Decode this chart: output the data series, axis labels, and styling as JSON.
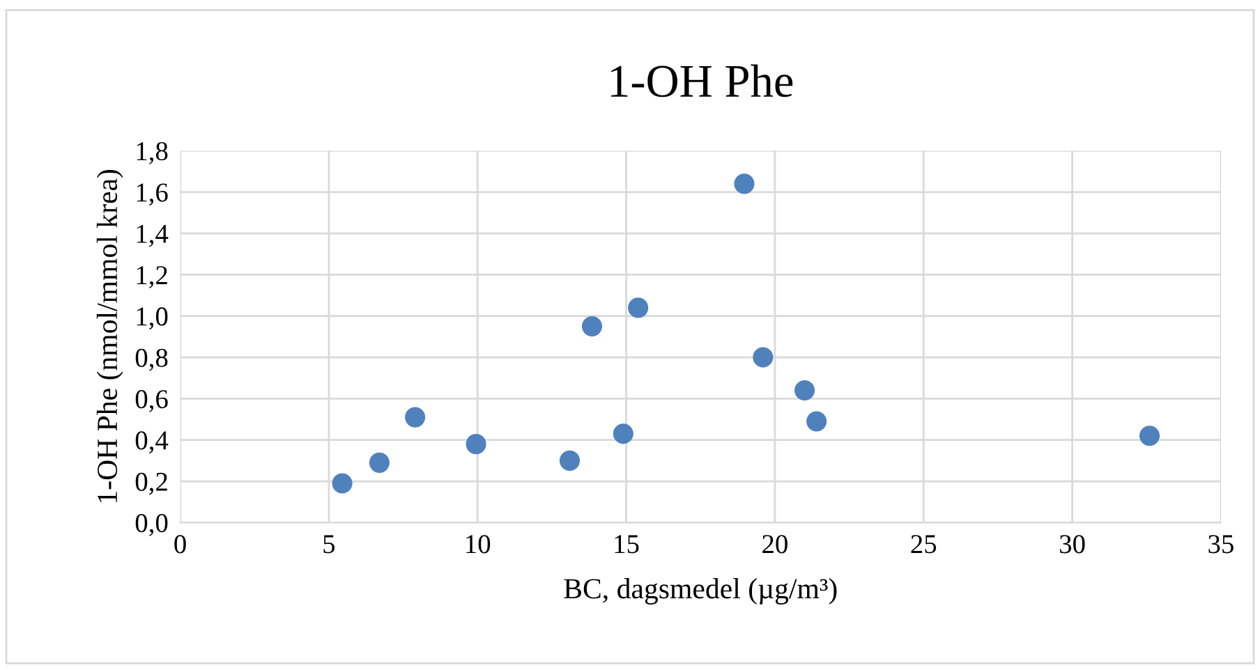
{
  "chart_data": {
    "type": "scatter",
    "title": "1-OH Phe",
    "xlabel": "BC, dagsmedel (µg/m³)",
    "ylabel": "1-OH Phe (nmol/mmol krea)",
    "x": [
      5.45,
      6.7,
      7.9,
      9.95,
      13.1,
      13.85,
      14.9,
      15.4,
      18.97,
      19.6,
      21.0,
      21.4,
      32.6
    ],
    "series": [
      {
        "color": "#4f81bd",
        "values": [
          0.19,
          0.29,
          0.51,
          0.38,
          0.3,
          0.95,
          0.43,
          1.04,
          1.64,
          0.8,
          0.64,
          0.49,
          0.42
        ]
      }
    ],
    "xlim": [
      0,
      35
    ],
    "xticks": [
      0,
      5,
      10,
      15,
      20,
      25,
      30,
      35
    ],
    "ylim": [
      0,
      1.8
    ],
    "yticks": [
      {
        "value": 0,
        "label": "0,0"
      },
      {
        "value": 0.2,
        "label": "0,2"
      },
      {
        "value": 0.4,
        "label": "0,4"
      },
      {
        "value": 0.6,
        "label": "0,6"
      },
      {
        "value": 0.8,
        "label": "0,8"
      },
      {
        "value": 1.0,
        "label": "1,0"
      },
      {
        "value": 1.2,
        "label": "1,2"
      },
      {
        "value": 1.4,
        "label": "1,4"
      },
      {
        "value": 1.6,
        "label": "1,6"
      },
      {
        "value": 1.8,
        "label": "1,8"
      }
    ],
    "grid": true,
    "marker": "circle",
    "legend": false
  }
}
